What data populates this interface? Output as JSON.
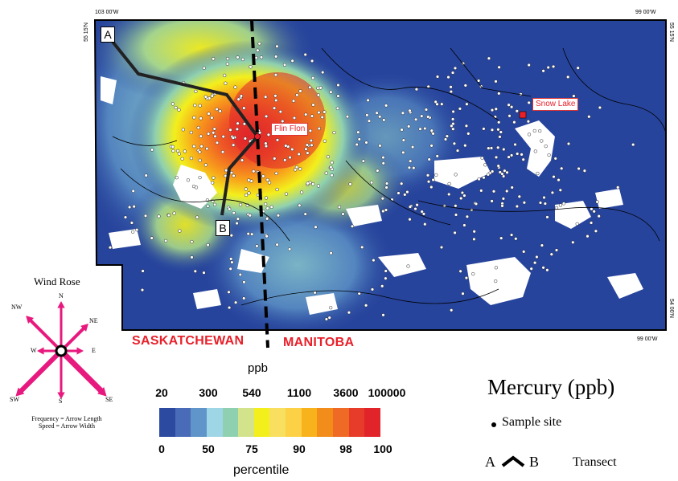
{
  "map": {
    "title": "Mercury (ppb)",
    "coords": {
      "top_left_lon": "103 00'W",
      "top_right_lon": "99 00'W",
      "bottom_right_lon": "99 00'W",
      "left_lat": "55 15'N",
      "right_lat_top": "55 15'N",
      "right_lat_bottom": "54 00'N"
    },
    "provinces": {
      "west": "SASKATCHEWAN",
      "east": "MANITOBA"
    },
    "towns": [
      {
        "name": "Flin Flon"
      },
      {
        "name": "Snow Lake"
      }
    ],
    "transect": {
      "start": "A",
      "end": "B"
    }
  },
  "wind_rose": {
    "title": "Wind Rose",
    "directions": [
      "N",
      "NE",
      "E",
      "SE",
      "S",
      "SW",
      "W",
      "NW"
    ],
    "note_frequency": "Frequency = Arrow Length",
    "note_speed": "Speed = Arrow Width",
    "color": "#e8197e"
  },
  "legend": {
    "unit_label": "ppb",
    "ppb_ticks": [
      "20",
      "300",
      "540",
      "1100",
      "3600",
      "100000"
    ],
    "percentile_ticks": [
      "0",
      "50",
      "75",
      "90",
      "98",
      "100"
    ],
    "percentile_label": "percentile",
    "colors": [
      "#2b4aa0",
      "#4a6cb8",
      "#5f95c8",
      "#9fd6e6",
      "#8fd0b0",
      "#d2e38c",
      "#f3ef1c",
      "#f9df60",
      "#fcd145",
      "#f8b21b",
      "#f28d1c",
      "#ef6a25",
      "#e83c2a",
      "#e0242a"
    ],
    "sample_site": "Sample site",
    "transect_start": "A",
    "transect_end": "B",
    "transect_label": "Transect"
  }
}
